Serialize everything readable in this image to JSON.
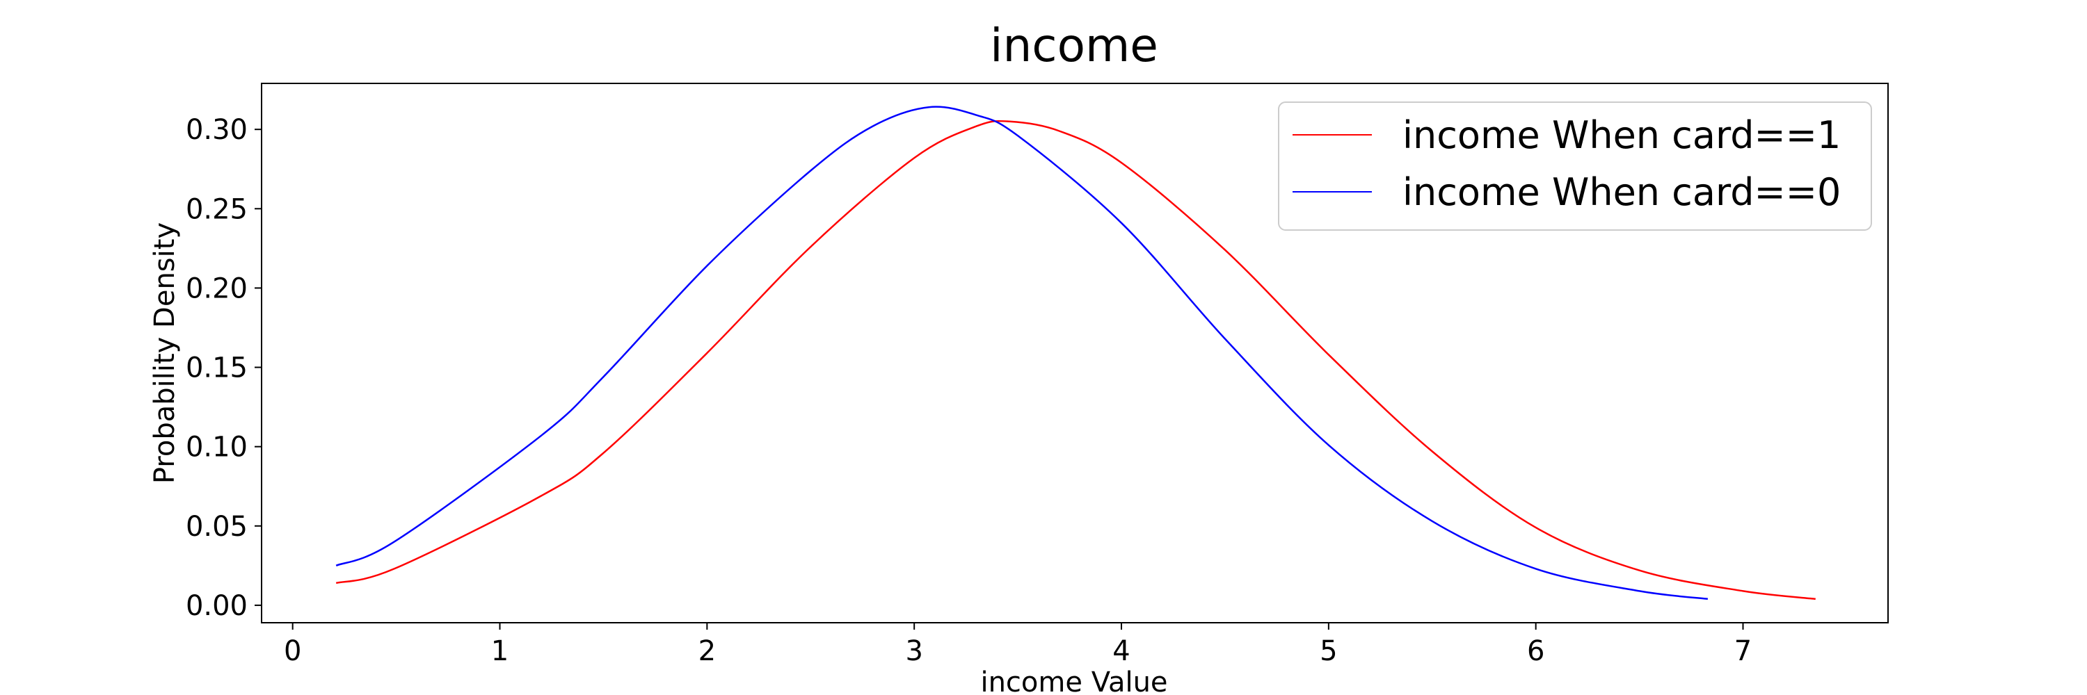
{
  "chart_data": {
    "type": "line",
    "title": "income",
    "xlabel": "income Value",
    "ylabel": "Probability Density",
    "xlim": [
      -0.15,
      7.7
    ],
    "ylim": [
      -0.011,
      0.329
    ],
    "xticks": [
      0,
      1,
      2,
      3,
      4,
      5,
      6,
      7
    ],
    "yticks": [
      0.0,
      0.05,
      0.1,
      0.15,
      0.2,
      0.25,
      0.3
    ],
    "grid": false,
    "legend_position": "top-right",
    "series": [
      {
        "name": "income When card==1",
        "color": "#ff0000",
        "points": [
          [
            0.21,
            0.014
          ],
          [
            0.49,
            0.023
          ],
          [
            1.2,
            0.069
          ],
          [
            1.5,
            0.096
          ],
          [
            2.0,
            0.159
          ],
          [
            2.5,
            0.226
          ],
          [
            3.0,
            0.282
          ],
          [
            3.3,
            0.302
          ],
          [
            3.46,
            0.305
          ],
          [
            3.7,
            0.299
          ],
          [
            4.0,
            0.279
          ],
          [
            4.5,
            0.224
          ],
          [
            5.0,
            0.158
          ],
          [
            5.5,
            0.097
          ],
          [
            6.0,
            0.049
          ],
          [
            6.5,
            0.022
          ],
          [
            7.0,
            0.009
          ],
          [
            7.35,
            0.004
          ]
        ]
      },
      {
        "name": "income When card==0",
        "color": "#0000ff",
        "points": [
          [
            0.21,
            0.025
          ],
          [
            0.49,
            0.04
          ],
          [
            1.2,
            0.107
          ],
          [
            1.5,
            0.144
          ],
          [
            2.0,
            0.214
          ],
          [
            2.5,
            0.274
          ],
          [
            2.8,
            0.302
          ],
          [
            3.07,
            0.314
          ],
          [
            3.3,
            0.309
          ],
          [
            3.5,
            0.296
          ],
          [
            4.0,
            0.241
          ],
          [
            4.5,
            0.168
          ],
          [
            5.0,
            0.101
          ],
          [
            5.5,
            0.053
          ],
          [
            6.0,
            0.023
          ],
          [
            6.5,
            0.009
          ],
          [
            6.83,
            0.004
          ]
        ]
      }
    ]
  }
}
